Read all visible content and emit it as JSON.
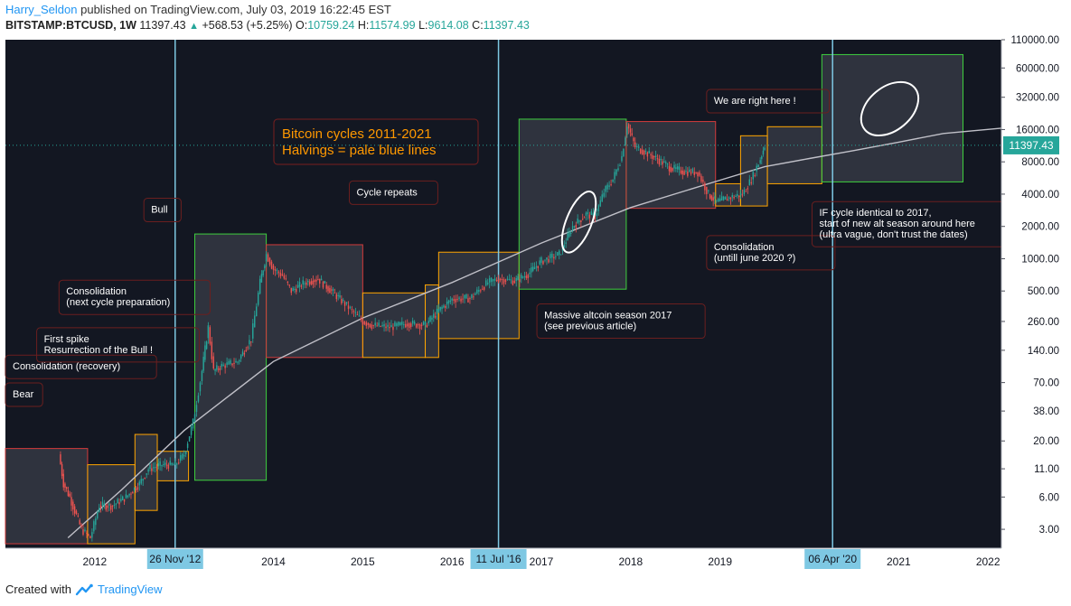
{
  "header": {
    "author": "Harry_Seldon",
    "published_text": " published on TradingView.com, July 03, 2019 16:22:45 EST",
    "symbol": "BITSTAMP:BTCUSD, 1W",
    "last": "11397.43",
    "change": "+568.53 (+5.25%)",
    "o_label": "O:",
    "o_value": "10759.24",
    "h_label": "H:",
    "h_value": "11574.99",
    "l_label": "L:",
    "l_value": "9614.08",
    "c_label": "C:",
    "c_value": "11397.43"
  },
  "footer": {
    "created_with": "Created with",
    "brand": "TradingView"
  },
  "colors": {
    "background": "#131722",
    "candle_up": "#26a69a",
    "candle_down": "#ef5350",
    "halving_line": "#7ec8e3",
    "box_red": "#d33b3b",
    "box_green": "#3ecf3e",
    "box_orange": "#ffa500",
    "title_text": "#ff9800",
    "price_label": "#26a69a"
  },
  "chart_data": {
    "type": "candlestick",
    "title": "Bitcoin cycles 2011-2021",
    "subtitle": "Halvings = pale blue lines",
    "scale": "log",
    "ylim": [
      2,
      110000
    ],
    "xlim": [
      2011.0,
      2022.15
    ],
    "y_ticks": [
      "110000.00",
      "60000.00",
      "32000.00",
      "16000.00",
      "8000.00",
      "4000.00",
      "2000.00",
      "1000.00",
      "500.00",
      "260.00",
      "140.00",
      "70.00",
      "38.00",
      "20.00",
      "11.00",
      "6.00",
      "3.00"
    ],
    "y_tick_values": [
      110000,
      60000,
      32000,
      16000,
      8000,
      4000,
      2000,
      1000,
      500,
      260,
      140,
      70,
      38,
      20,
      11,
      6,
      3
    ],
    "x_ticks": [
      "2012",
      "2014",
      "2015",
      "2016",
      "2017",
      "2018",
      "2019",
      "2021",
      "2022"
    ],
    "x_tick_values": [
      2012.0,
      2014.0,
      2015.0,
      2016.0,
      2017.0,
      2018.0,
      2019.0,
      2021.0,
      2022.0
    ],
    "current_price": 11397.43,
    "current_price_label": "11397.43",
    "halvings": [
      {
        "x": 2012.9,
        "label": "26 Nov '12"
      },
      {
        "x": 2016.52,
        "label": "11 Jul '16"
      },
      {
        "x": 2020.26,
        "label": "06 Apr '20"
      }
    ],
    "price_path": [
      [
        2011.6,
        15
      ],
      [
        2011.65,
        8
      ],
      [
        2011.72,
        6
      ],
      [
        2011.85,
        3
      ],
      [
        2011.95,
        2.5
      ],
      [
        2012.05,
        5
      ],
      [
        2012.2,
        5
      ],
      [
        2012.35,
        6
      ],
      [
        2012.5,
        8
      ],
      [
        2012.6,
        11
      ],
      [
        2012.75,
        12
      ],
      [
        2012.9,
        12
      ],
      [
        2013.0,
        15
      ],
      [
        2013.1,
        30
      ],
      [
        2013.2,
        90
      ],
      [
        2013.27,
        230
      ],
      [
        2013.33,
        90
      ],
      [
        2013.42,
        100
      ],
      [
        2013.6,
        110
      ],
      [
        2013.75,
        180
      ],
      [
        2013.85,
        600
      ],
      [
        2013.92,
        1100
      ],
      [
        2014.0,
        800
      ],
      [
        2014.1,
        700
      ],
      [
        2014.2,
        500
      ],
      [
        2014.35,
        600
      ],
      [
        2014.5,
        650
      ],
      [
        2014.65,
        500
      ],
      [
        2014.8,
        380
      ],
      [
        2015.0,
        260
      ],
      [
        2015.1,
        240
      ],
      [
        2015.3,
        230
      ],
      [
        2015.5,
        250
      ],
      [
        2015.7,
        240
      ],
      [
        2015.85,
        330
      ],
      [
        2016.0,
        420
      ],
      [
        2016.2,
        430
      ],
      [
        2016.4,
        600
      ],
      [
        2016.52,
        650
      ],
      [
        2016.7,
        620
      ],
      [
        2016.85,
        720
      ],
      [
        2017.0,
        950
      ],
      [
        2017.2,
        1100
      ],
      [
        2017.35,
        2000
      ],
      [
        2017.5,
        2600
      ],
      [
        2017.6,
        2500
      ],
      [
        2017.7,
        4200
      ],
      [
        2017.8,
        5500
      ],
      [
        2017.9,
        9000
      ],
      [
        2017.96,
        18000
      ],
      [
        2018.05,
        11000
      ],
      [
        2018.15,
        10000
      ],
      [
        2018.3,
        8500
      ],
      [
        2018.45,
        7000
      ],
      [
        2018.6,
        6500
      ],
      [
        2018.75,
        6400
      ],
      [
        2018.87,
        4000
      ],
      [
        2018.96,
        3400
      ],
      [
        2019.1,
        3700
      ],
      [
        2019.25,
        4000
      ],
      [
        2019.35,
        5500
      ],
      [
        2019.45,
        8500
      ],
      [
        2019.5,
        11400
      ]
    ],
    "trend_curve": [
      [
        2011.7,
        2.5
      ],
      [
        2012.3,
        7
      ],
      [
        2013.0,
        25
      ],
      [
        2014.0,
        110
      ],
      [
        2015.0,
        280
      ],
      [
        2016.0,
        600
      ],
      [
        2017.0,
        1400
      ],
      [
        2018.0,
        3000
      ],
      [
        2019.0,
        5400
      ],
      [
        2019.5,
        7200
      ],
      [
        2020.0,
        8600
      ],
      [
        2020.5,
        10200
      ],
      [
        2021.0,
        12200
      ],
      [
        2021.5,
        14700
      ],
      [
        2022.15,
        16500
      ]
    ],
    "boxes": [
      {
        "x0": 2011.0,
        "x1": 2011.92,
        "y0": 2.2,
        "y1": 17,
        "color": "red"
      },
      {
        "x0": 2011.92,
        "x1": 2012.45,
        "y0": 2.2,
        "y1": 12,
        "color": "orange"
      },
      {
        "x0": 2012.45,
        "x1": 2012.7,
        "y0": 4.5,
        "y1": 23,
        "color": "orange"
      },
      {
        "x0": 2012.7,
        "x1": 2013.05,
        "y0": 8.5,
        "y1": 16,
        "color": "orange"
      },
      {
        "x0": 2013.12,
        "x1": 2013.92,
        "y0": 8.6,
        "y1": 1700,
        "color": "green"
      },
      {
        "x0": 2013.92,
        "x1": 2015.0,
        "y0": 120,
        "y1": 1350,
        "color": "red"
      },
      {
        "x0": 2015.0,
        "x1": 2015.7,
        "y0": 120,
        "y1": 480,
        "color": "orange"
      },
      {
        "x0": 2015.7,
        "x1": 2015.85,
        "y0": 120,
        "y1": 570,
        "color": "orange"
      },
      {
        "x0": 2015.85,
        "x1": 2016.75,
        "y0": 180,
        "y1": 1150,
        "color": "orange"
      },
      {
        "x0": 2016.75,
        "x1": 2017.95,
        "y0": 520,
        "y1": 20000,
        "color": "green"
      },
      {
        "x0": 2017.95,
        "x1": 2018.95,
        "y0": 2950,
        "y1": 19000,
        "color": "red"
      },
      {
        "x0": 2018.95,
        "x1": 2019.23,
        "y0": 3100,
        "y1": 5000,
        "color": "orange"
      },
      {
        "x0": 2019.23,
        "x1": 2019.53,
        "y0": 3100,
        "y1": 14000,
        "color": "orange"
      },
      {
        "x0": 2019.53,
        "x1": 2020.14,
        "y0": 5000,
        "y1": 17000,
        "color": "orange"
      },
      {
        "x0": 2020.14,
        "x1": 2021.72,
        "y0": 5200,
        "y1": 80000,
        "color": "green"
      }
    ],
    "annotations": [
      {
        "text": "Bear",
        "x": 2011.0,
        "y": 55
      },
      {
        "text": "Consolidation (recovery)",
        "x": 2011.0,
        "y": 100
      },
      {
        "text": "First spike\nResurrection of the Bull !",
        "x": 2011.35,
        "y": 180
      },
      {
        "text": "Consolidation\n(next cycle preparation)",
        "x": 2011.6,
        "y": 500
      },
      {
        "text": "Bull",
        "x": 2012.55,
        "y": 2900
      },
      {
        "text": "Cycle repeats",
        "x": 2014.85,
        "y": 4200
      },
      {
        "text": "Massive altcoin season 2017\n(see previous article)",
        "x": 2016.95,
        "y": 300
      },
      {
        "text": "We are right here !",
        "x": 2018.85,
        "y": 30000
      },
      {
        "text": "Consolidation\n(untill june 2020 ?)",
        "x": 2018.85,
        "y": 1300
      },
      {
        "text": "IF cycle identical to 2017,\nstart of new alt season around here\n(ultra vague, don't trust the dates)",
        "x": 2020.03,
        "y": 2700
      }
    ]
  }
}
